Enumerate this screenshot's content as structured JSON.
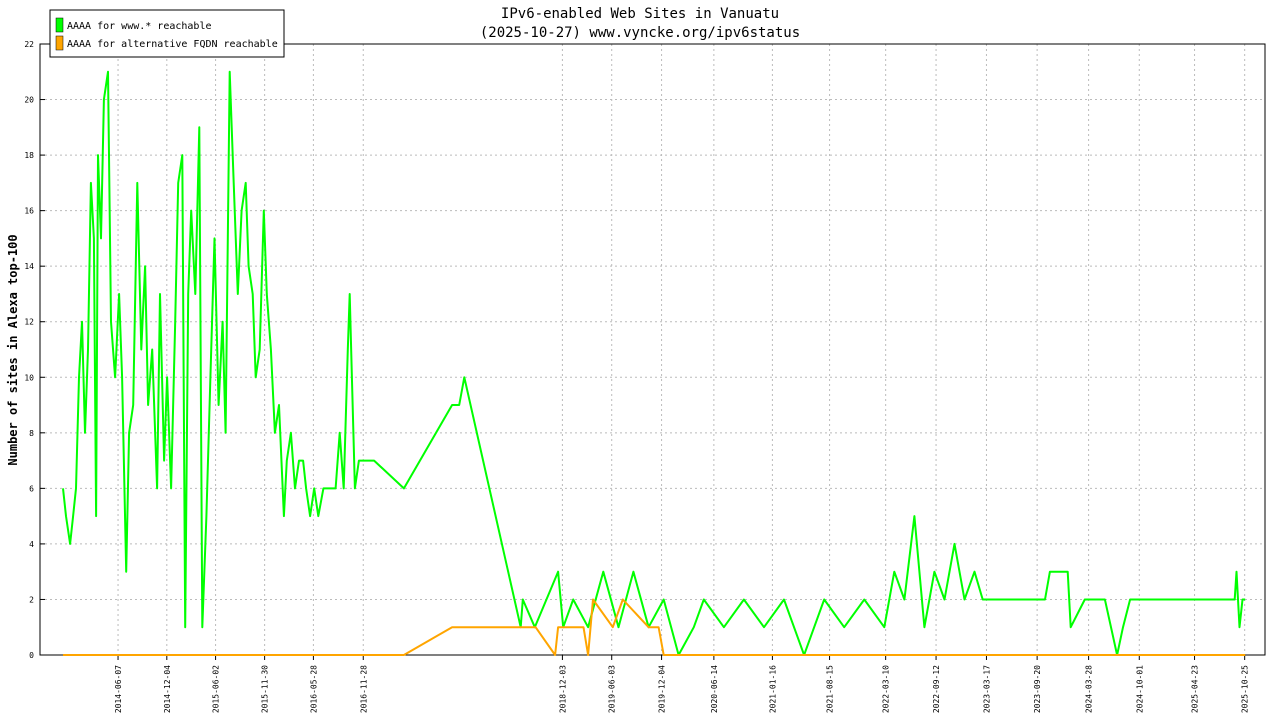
{
  "chart_data": {
    "type": "line",
    "title": "IPv6-enabled Web Sites in Vanuatu",
    "subtitle": "(2025-10-27) www.vyncke.org/ipv6status",
    "y_label": "Number of sites in Alexa top-100",
    "xlim": [
      "2013-08-23",
      "2026-01-08"
    ],
    "xticks": [
      "2014-06-07",
      "2014-12-04",
      "2015-06-02",
      "2015-11-30",
      "2016-05-28",
      "2016-11-28",
      "2018-12-03",
      "2019-06-03",
      "2019-12-04",
      "2020-06-14",
      "2021-01-16",
      "2021-08-15",
      "2022-03-10",
      "2022-09-12",
      "2023-03-17",
      "2023-09-20",
      "2024-03-28",
      "2024-10-01",
      "2025-04-23",
      "2025-10-25"
    ],
    "ylim": [
      0,
      22
    ],
    "yticks": [
      0,
      2,
      4,
      6,
      8,
      10,
      12,
      14,
      16,
      18,
      20,
      22
    ],
    "grid": true,
    "legend": "top-left",
    "series": [
      {
        "name": "AAAA for www.* reachable",
        "color": "#00ff00",
        "x": [
          "2013-11-16",
          "2013-11-27",
          "2013-12-12",
          "2013-12-23",
          "2014-01-03",
          "2014-01-14",
          "2014-01-25",
          "2014-02-05",
          "2014-02-16",
          "2014-02-27",
          "2014-03-10",
          "2014-03-18",
          "2014-03-25",
          "2014-04-05",
          "2014-04-16",
          "2014-05-01",
          "2014-05-12",
          "2014-05-27",
          "2014-06-11",
          "2014-06-22",
          "2014-07-07",
          "2014-07-18",
          "2014-08-02",
          "2014-08-17",
          "2014-09-01",
          "2014-09-15",
          "2014-09-26",
          "2014-10-11",
          "2014-10-29",
          "2014-11-09",
          "2014-11-24",
          "2014-12-05",
          "2014-12-20",
          "2015-01-04",
          "2015-01-15",
          "2015-01-30",
          "2015-02-10",
          "2015-02-21",
          "2015-03-04",
          "2015-03-19",
          "2015-04-03",
          "2015-04-14",
          "2015-04-29",
          "2015-05-14",
          "2015-05-29",
          "2015-06-13",
          "2015-06-28",
          "2015-07-09",
          "2015-07-24",
          "2015-08-08",
          "2015-08-23",
          "2015-09-06",
          "2015-09-21",
          "2015-10-02",
          "2015-10-17",
          "2015-10-28",
          "2015-11-12",
          "2015-11-27",
          "2015-12-08",
          "2015-12-23",
          "2016-01-07",
          "2016-01-22",
          "2016-02-09",
          "2016-02-20",
          "2016-03-06",
          "2016-03-21",
          "2016-04-05",
          "2016-04-20",
          "2016-05-01",
          "2016-05-16",
          "2016-05-31",
          "2016-06-15",
          "2016-07-04",
          "2016-08-03",
          "2016-08-18",
          "2016-09-02",
          "2016-09-17",
          "2016-10-02",
          "2016-10-09",
          "2016-10-17",
          "2016-10-28",
          "2016-11-12",
          "2016-12-04",
          "2017-01-07",
          "2017-04-27",
          "2017-10-22",
          "2017-11-17",
          "2017-12-06",
          "2018-07-02",
          "2018-07-10",
          "2018-08-23",
          "2018-11-17",
          "2018-12-06",
          "2019-01-12",
          "2019-03-08",
          "2019-05-03",
          "2019-06-28",
          "2019-08-22",
          "2019-10-17",
          "2019-12-12",
          "2020-02-05",
          "2020-04-01",
          "2020-05-08",
          "2020-07-21",
          "2020-10-03",
          "2020-12-16",
          "2021-02-28",
          "2021-05-13",
          "2021-07-26",
          "2021-10-08",
          "2021-12-21",
          "2022-03-05",
          "2022-04-11",
          "2022-05-18",
          "2022-06-24",
          "2022-07-31",
          "2022-09-06",
          "2022-10-13",
          "2022-11-19",
          "2022-12-26",
          "2023-02-01",
          "2023-03-03",
          "2023-04-27",
          "2023-10-19",
          "2023-11-06",
          "2024-01-11",
          "2024-01-22",
          "2024-03-14",
          "2024-05-27",
          "2024-07-11",
          "2024-08-02",
          "2024-08-28",
          "2025-04-18",
          "2025-09-18",
          "2025-09-25",
          "2025-10-06",
          "2025-10-17",
          "2025-10-27"
        ],
        "values": [
          6,
          5,
          4,
          5,
          6,
          10,
          12,
          8,
          11,
          17,
          15,
          5,
          18,
          15,
          20,
          21,
          12,
          10,
          13,
          10,
          3,
          8,
          9,
          17,
          11,
          14,
          9,
          11,
          6,
          13,
          7,
          10,
          6,
          12,
          17,
          18,
          1,
          13,
          16,
          13,
          19,
          1,
          5,
          10,
          15,
          9,
          12,
          8,
          21,
          17,
          13,
          16,
          17,
          14,
          13,
          10,
          11,
          16,
          13,
          11,
          8,
          9,
          5,
          7,
          8,
          6,
          7,
          7,
          6,
          5,
          6,
          5,
          6,
          6,
          6,
          8,
          6,
          11,
          13,
          10,
          6,
          7,
          7,
          7,
          6,
          9,
          9,
          10,
          1,
          2,
          1,
          3,
          1,
          2,
          1,
          3,
          1,
          3,
          1,
          2,
          0,
          1,
          2,
          1,
          2,
          1,
          2,
          0,
          2,
          1,
          2,
          1,
          3,
          2,
          5,
          1,
          3,
          2,
          4,
          2,
          3,
          2,
          2,
          2,
          3,
          3,
          1,
          2,
          2,
          0,
          1,
          2,
          2,
          2,
          3,
          1,
          2,
          2
        ]
      },
      {
        "name": "AAAA for alternative FQDN reachable",
        "color": "#ffa500",
        "x": [
          "2013-11-16",
          "2017-04-27",
          "2017-10-22",
          "2018-08-26",
          "2018-11-06",
          "2018-11-17",
          "2019-02-19",
          "2019-03-08",
          "2019-03-26",
          "2019-06-07",
          "2019-07-14",
          "2019-10-17",
          "2019-11-23",
          "2019-12-12",
          "2025-10-27"
        ],
        "values": [
          0,
          0,
          1,
          1,
          0,
          1,
          1,
          0,
          2,
          1,
          2,
          1,
          1,
          0,
          0
        ]
      }
    ]
  }
}
